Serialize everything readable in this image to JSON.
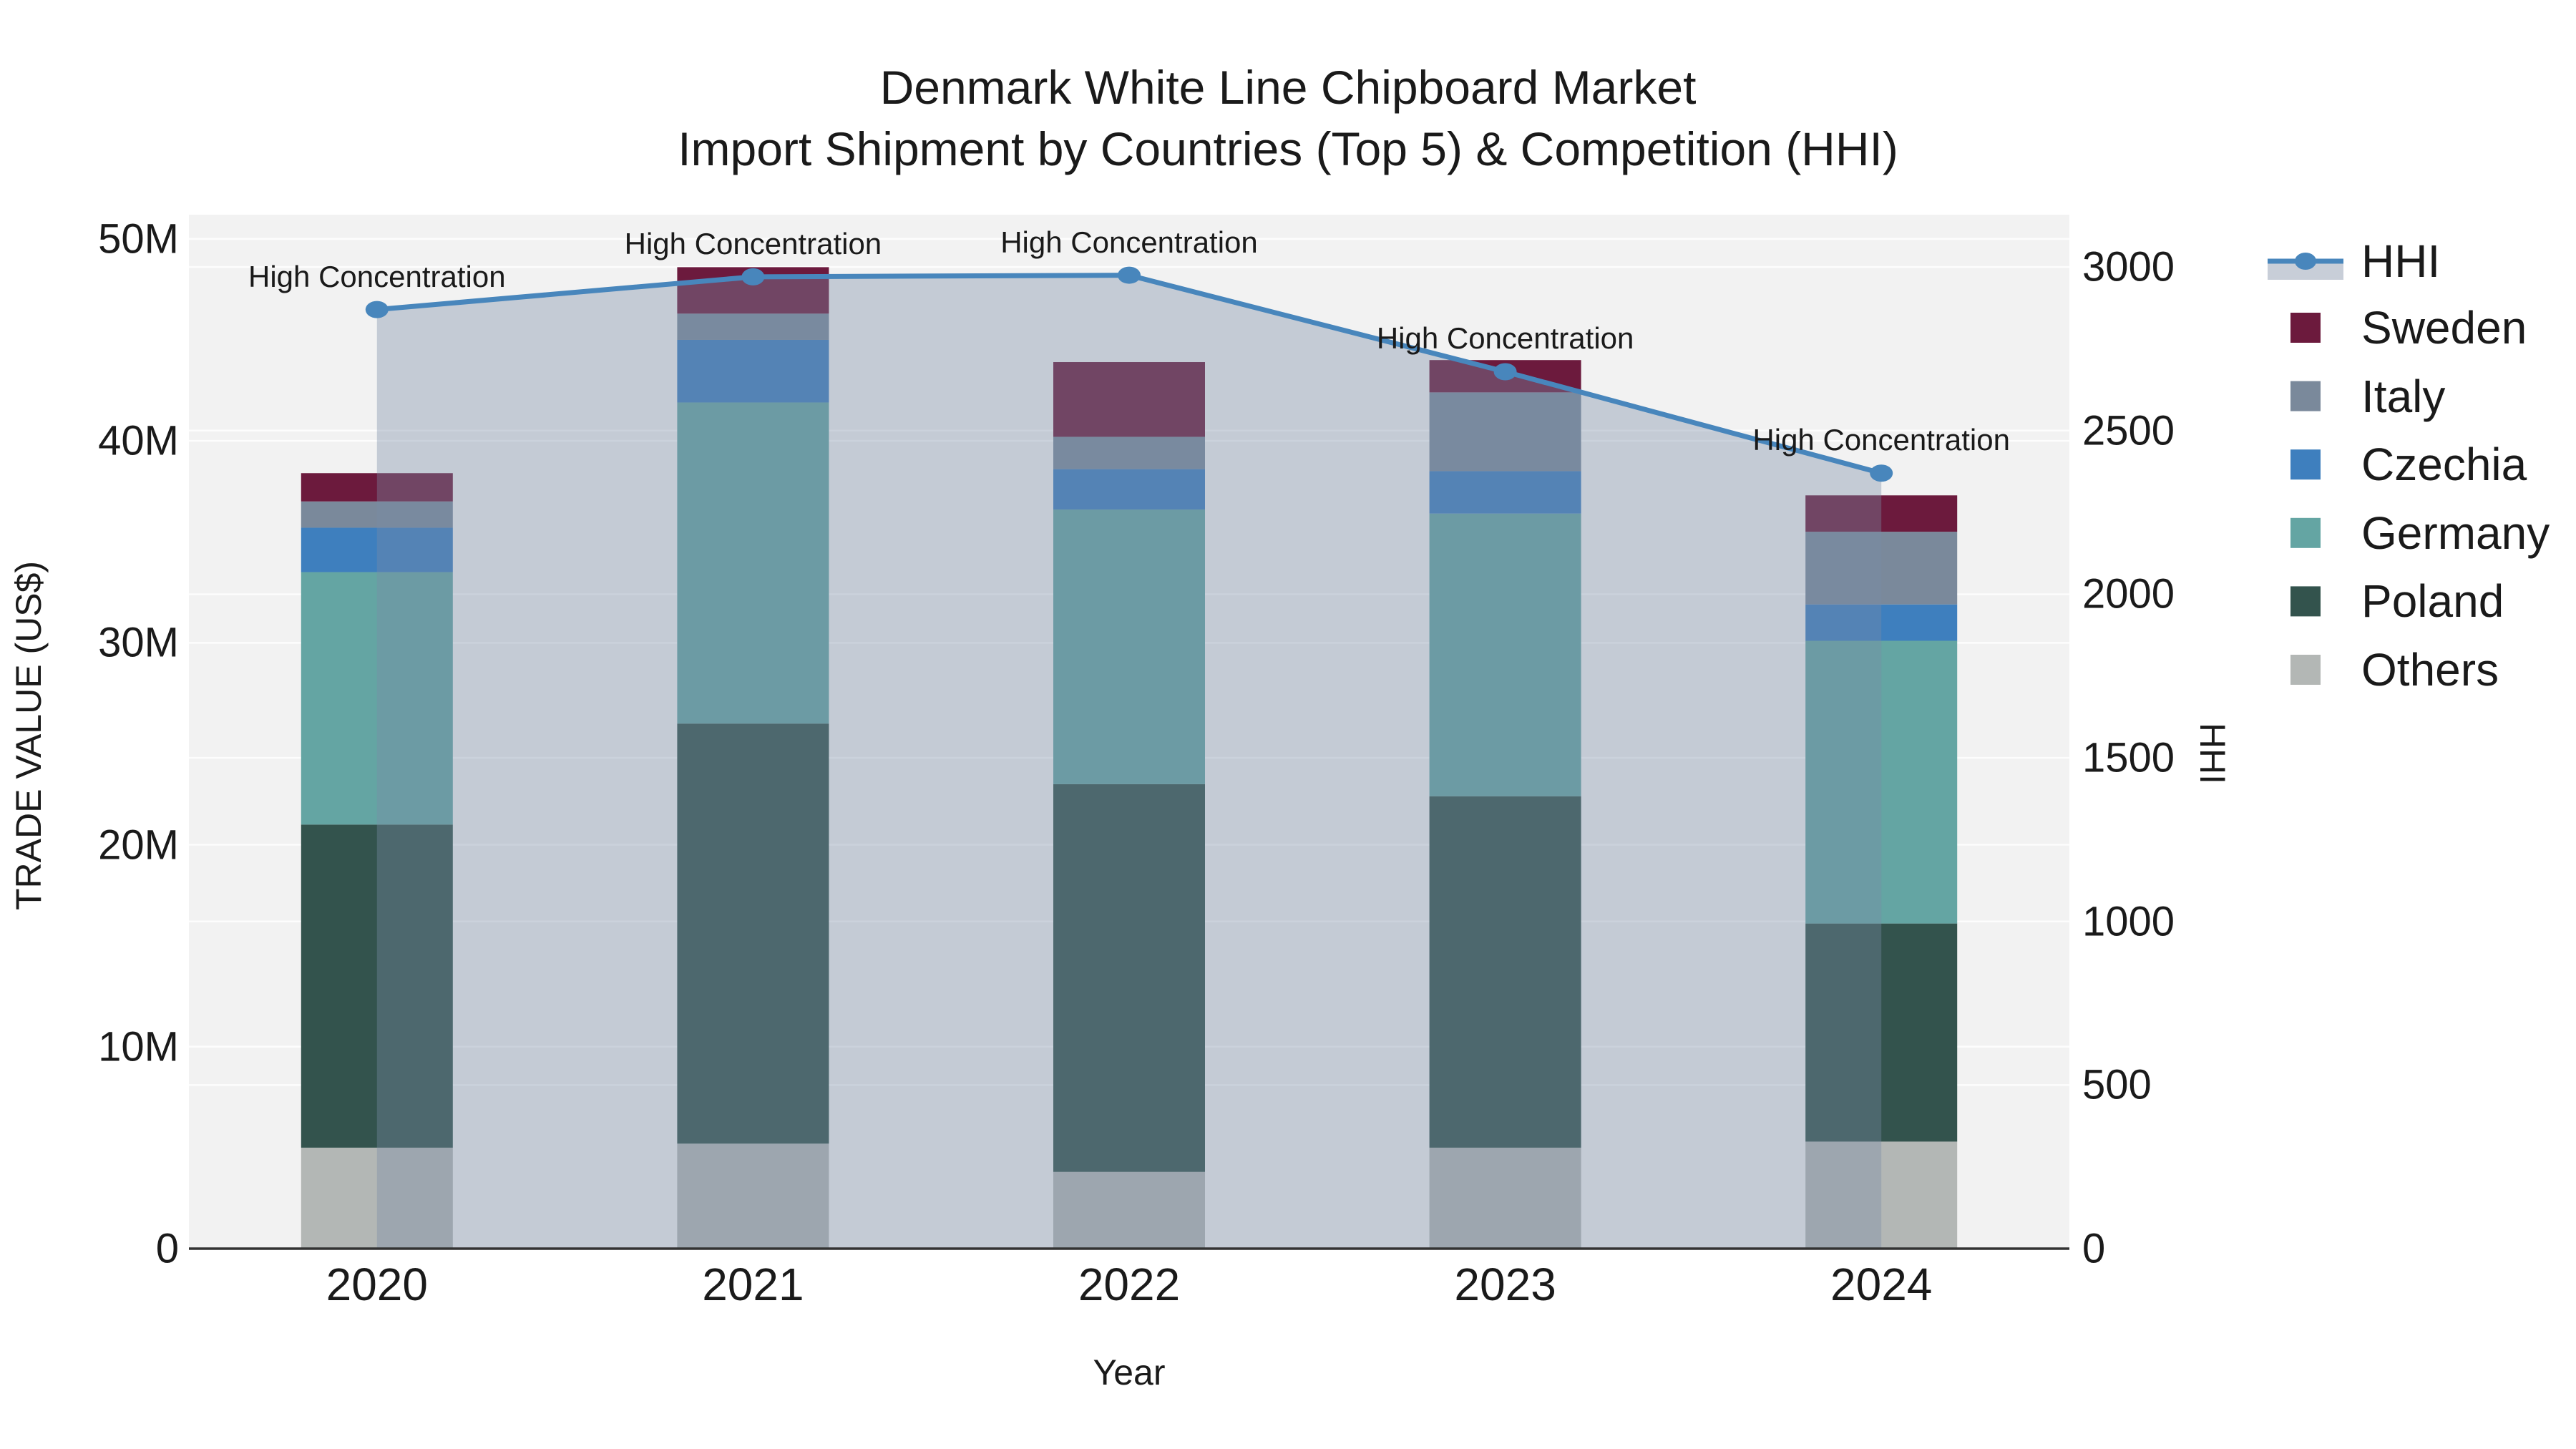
{
  "title": {
    "line1": "Denmark White Line Chipboard Market",
    "line2": "Import Shipment by Countries (Top 5) & Competition (HHI)"
  },
  "axes": {
    "y_left": {
      "title": "TRADE VALUE (US$)",
      "ticks": [
        "50M",
        "40M",
        "30M",
        "20M",
        "10M",
        "0"
      ],
      "tick_values": [
        50,
        40,
        30,
        20,
        10,
        0
      ]
    },
    "y_right": {
      "title": "HHI",
      "ticks": [
        "3000",
        "2500",
        "2000",
        "1500",
        "1000",
        "500",
        "0"
      ],
      "tick_values": [
        3000,
        2500,
        2000,
        1500,
        1000,
        500,
        0
      ]
    },
    "x": {
      "title": "Year",
      "ticks": [
        "2020",
        "2021",
        "2022",
        "2023",
        "2024"
      ]
    }
  },
  "legend": {
    "items": [
      {
        "label": "HHI",
        "type": "line",
        "color": "#4886BC"
      },
      {
        "label": "Sweden",
        "type": "bar",
        "color": "#6C1A3D"
      },
      {
        "label": "Italy",
        "type": "bar",
        "color": "#7A899B"
      },
      {
        "label": "Czechia",
        "type": "bar",
        "color": "#3E7FBE"
      },
      {
        "label": "Germany",
        "type": "bar",
        "color": "#64A5A3"
      },
      {
        "label": "Poland",
        "type": "bar",
        "color": "#33534D"
      },
      {
        "label": "Others",
        "type": "bar",
        "color": "#B3B7B5"
      }
    ]
  },
  "chart_data": {
    "type": "combo: stacked bar (left axis) + line with area fill (right axis)",
    "categories": [
      "2020",
      "2021",
      "2022",
      "2023",
      "2024"
    ],
    "value_unit": "million US$",
    "series": [
      {
        "name": "Others",
        "color": "#B3B7B5",
        "values": [
          5.0,
          5.2,
          3.8,
          5.0,
          5.3
        ]
      },
      {
        "name": "Poland",
        "color": "#33534D",
        "values": [
          16.0,
          20.8,
          19.2,
          17.4,
          10.8
        ]
      },
      {
        "name": "Germany",
        "color": "#64A5A3",
        "values": [
          12.5,
          15.9,
          13.6,
          14.0,
          14.0
        ]
      },
      {
        "name": "Czechia",
        "color": "#3E7FBE",
        "values": [
          2.2,
          3.1,
          2.0,
          2.1,
          1.8
        ]
      },
      {
        "name": "Italy",
        "color": "#7A899B",
        "values": [
          1.3,
          1.3,
          1.6,
          3.9,
          3.6
        ]
      },
      {
        "name": "Sweden",
        "color": "#6C1A3D",
        "values": [
          1.4,
          2.3,
          3.7,
          1.6,
          1.8
        ]
      }
    ],
    "stack_totals": [
      38.4,
      48.6,
      43.9,
      44.0,
      37.3
    ],
    "line_series": {
      "name": "HHI",
      "axis": "right",
      "color": "#4886BC",
      "area_fill": "rgba(120,140,165,0.38)",
      "values": [
        2870,
        2970,
        2975,
        2680,
        2370
      ],
      "point_annotations": [
        "High Concentration",
        "High Concentration",
        "High Concentration",
        "High Concentration",
        "High Concentration"
      ]
    },
    "xlabel": "Year",
    "ylabel_left": "TRADE VALUE (US$)",
    "ylabel_right": "HHI",
    "y_left_range_m": [
      0,
      51.2
    ],
    "y_right_range": [
      0,
      3160
    ],
    "grid": {
      "on": true,
      "left_lines_m": [
        10,
        20,
        30,
        40,
        50
      ],
      "right_lines": [
        500,
        1000,
        1500,
        2000,
        2500,
        3000
      ]
    },
    "legend_position": "right"
  },
  "colors": {
    "plot_bg": "#F2F2F2",
    "paper_bg": "#FFFFFF",
    "grid": "#FFFFFF",
    "axis_line": "#333333",
    "text": "#1a1a1a"
  }
}
